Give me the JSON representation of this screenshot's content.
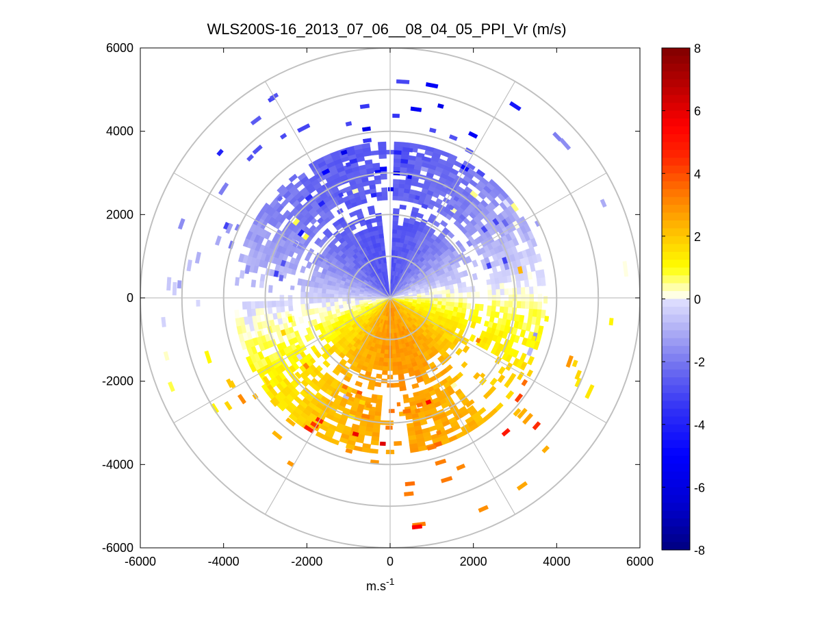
{
  "chart_data": {
    "type": "heatmap",
    "subtype": "polar-ppi",
    "title": "WLS200S-16_2013_07_06__08_04_05_PPI_Vr (m/s)",
    "xlabel_base": "m.s",
    "xlabel_exp": "-1",
    "ylabel": "",
    "xlim": [
      -6000,
      6000
    ],
    "ylim": [
      -6000,
      6000
    ],
    "xticks": [
      -6000,
      -4000,
      -2000,
      0,
      2000,
      4000,
      6000
    ],
    "yticks": [
      -6000,
      -4000,
      -2000,
      0,
      2000,
      4000,
      6000
    ],
    "xtick_labels": [
      "-6000",
      "-4000",
      "-2000",
      "0",
      "2000",
      "4000",
      "6000"
    ],
    "ytick_labels": [
      "6000",
      "4000",
      "2000",
      "0",
      "-2000",
      "-4000",
      "-6000"
    ],
    "grid_rings": [
      1000,
      2000,
      3000,
      4000,
      5000,
      6000
    ],
    "grid_spokes_deg": [
      0,
      30,
      60,
      90,
      120,
      150,
      180,
      210,
      240,
      270,
      300,
      330
    ],
    "colorbar": {
      "range": [
        -8,
        8
      ],
      "ticks": [
        8,
        6,
        4,
        2,
        0,
        -2,
        -4,
        -6,
        -8
      ],
      "tick_labels": [
        "8",
        "6",
        "4",
        "2",
        "0",
        "-2",
        "-4",
        "-6",
        "-8"
      ]
    },
    "data_ranges_m": {
      "dense_inner_max": 2200,
      "dense_outer_min": 2400,
      "dense_outer_max": 3700,
      "sparse_max": 5700
    },
    "velocity_pattern": "northward sector negative (-2 to -3 m/s, blue), southward sector positive (+2 to +3 m/s, orange), sign change near east-west axis; scattered outliers to ±8 m/s beyond 3500 m",
    "colors": {
      "axis": "#000000",
      "grid": "#c0c0c0",
      "negative_extreme": "#00008f",
      "negative_strong": "#0000ff",
      "negative_weak": "#dcdcff",
      "zero": "#ffffff",
      "positive_weak": "#ffff00",
      "positive_strong": "#ff0000",
      "positive_extreme": "#800000"
    }
  }
}
